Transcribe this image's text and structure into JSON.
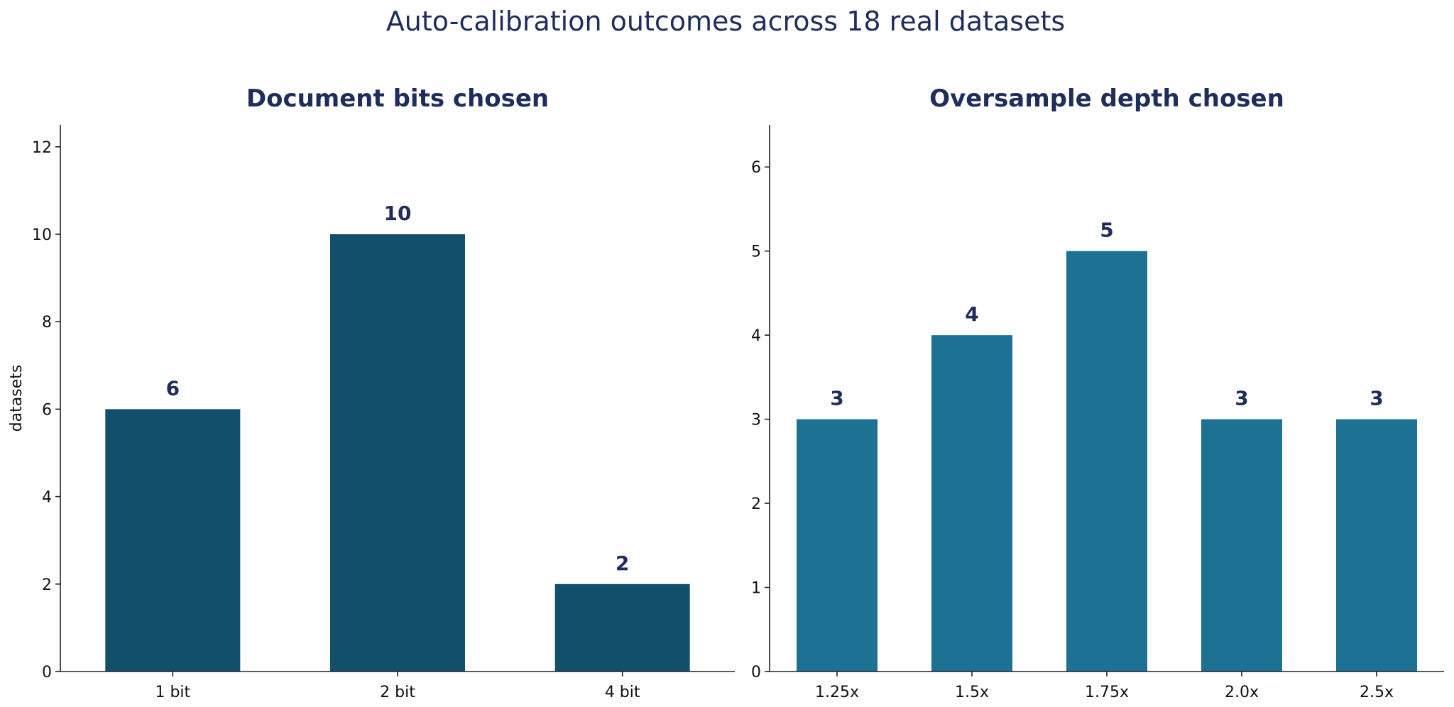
{
  "suptitle": "Auto-calibration outcomes across 18 real datasets",
  "chart_data": [
    {
      "type": "bar",
      "title": "Document bits chosen",
      "ylabel": "datasets",
      "xlabel": "",
      "categories": [
        "1 bit",
        "2 bit",
        "4 bit"
      ],
      "values": [
        6,
        10,
        2
      ],
      "data_labels": [
        "6",
        "10",
        "2"
      ],
      "ylim": [
        0,
        12.5
      ],
      "yticks": [
        0,
        2,
        4,
        6,
        8,
        10,
        12
      ],
      "color": "#114f6b",
      "grid": false
    },
    {
      "type": "bar",
      "title": "Oversample depth chosen",
      "ylabel": "",
      "xlabel": "",
      "categories": [
        "1.25x",
        "1.5x",
        "1.75x",
        "2.0x",
        "2.5x"
      ],
      "values": [
        3,
        4,
        5,
        3,
        3
      ],
      "data_labels": [
        "3",
        "4",
        "5",
        "3",
        "3"
      ],
      "ylim": [
        0,
        6.5
      ],
      "yticks": [
        0,
        1,
        2,
        3,
        4,
        5,
        6
      ],
      "color": "#1d7193",
      "grid": false
    }
  ]
}
